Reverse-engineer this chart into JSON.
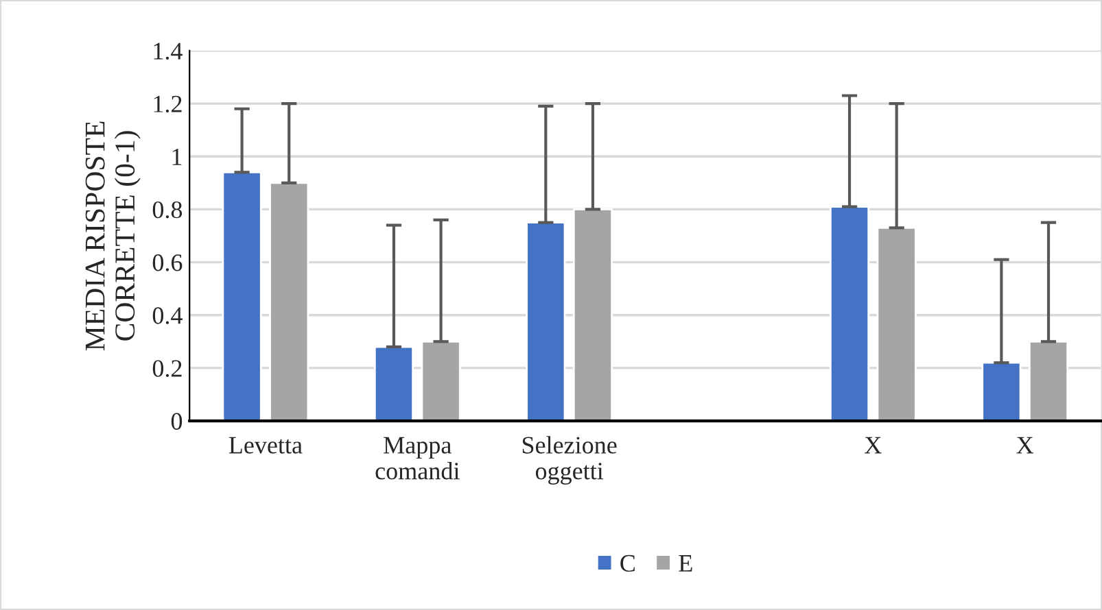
{
  "chart_data": {
    "type": "bar",
    "ylabel": "MEDIA RISPOSTE\nCORRETTE (0-1)",
    "categories": [
      "Levetta",
      "Mappa\ncomandi",
      "Selezione\noggetti",
      null,
      "X",
      "X"
    ],
    "series": [
      {
        "name": "C",
        "color": "#4472c4",
        "values": [
          0.94,
          0.28,
          0.75,
          null,
          0.81,
          0.22
        ],
        "errors": [
          [
            0.94,
            1.18
          ],
          [
            0.28,
            0.74
          ],
          [
            0.75,
            1.19
          ],
          null,
          [
            0.81,
            1.23
          ],
          [
            0.22,
            0.61
          ]
        ]
      },
      {
        "name": "E",
        "color": "#a5a5a5",
        "values": [
          0.9,
          0.3,
          0.8,
          null,
          0.73,
          0.3
        ],
        "errors": [
          [
            0.9,
            1.2
          ],
          [
            0.3,
            0.76
          ],
          [
            0.8,
            1.2
          ],
          null,
          [
            0.73,
            1.2
          ],
          [
            0.3,
            0.75
          ]
        ]
      }
    ],
    "ylim": [
      0,
      1.4
    ],
    "yticks": [
      0,
      {
        "value": 0.2,
        "label": "0.2"
      },
      {
        "value": 0.4,
        "label": "0.4"
      },
      {
        "value": 0.6,
        "label": "0.6"
      },
      {
        "value": 0.8,
        "label": "0.8"
      },
      1,
      {
        "value": 1.2,
        "label": "1.2"
      },
      {
        "value": 1.4,
        "label": "1.4"
      }
    ],
    "grid": "y",
    "legend": "bottom"
  }
}
